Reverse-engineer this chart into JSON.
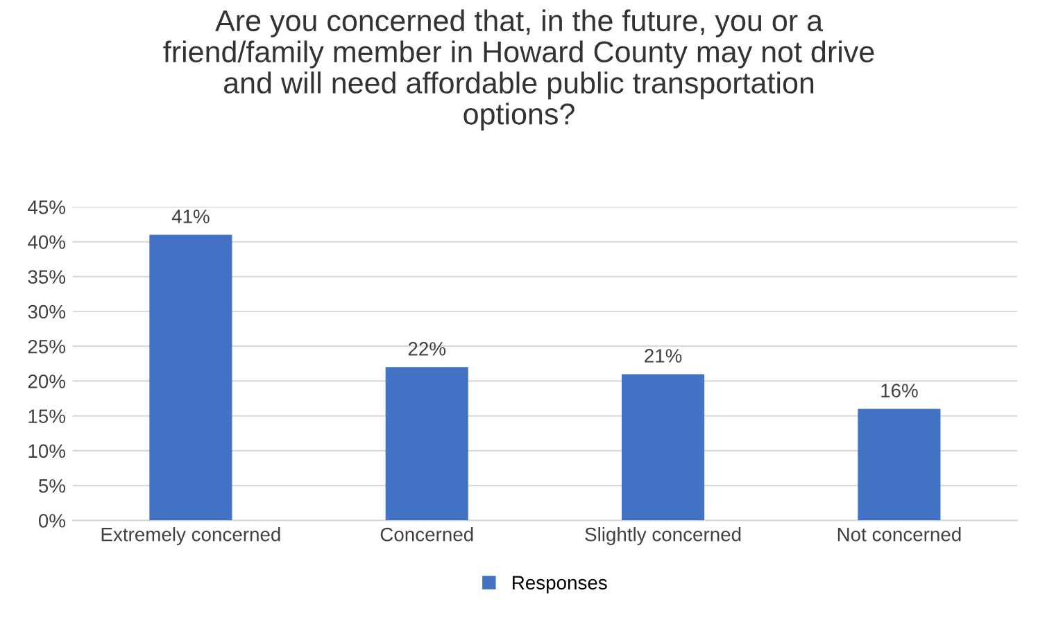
{
  "chart_data": {
    "type": "bar",
    "title": "Are you concerned that, in the future, you or a\nfriend/family member in Howard County may not drive\nand will need affordable public transportation\noptions?",
    "categories": [
      "Extremely concerned",
      "Concerned",
      "Slightly concerned",
      "Not concerned"
    ],
    "series": [
      {
        "name": "Responses",
        "color": "#4472c4",
        "values": [
          41,
          22,
          21,
          16
        ],
        "value_labels": [
          "41%",
          "22%",
          "21%",
          "16%"
        ]
      }
    ],
    "ylim": [
      0,
      45
    ],
    "yticks": [
      {
        "value": 0,
        "label": "0%"
      },
      {
        "value": 5,
        "label": "5%"
      },
      {
        "value": 10,
        "label": "10%"
      },
      {
        "value": 15,
        "label": "15%"
      },
      {
        "value": 20,
        "label": "20%"
      },
      {
        "value": 25,
        "label": "25%"
      },
      {
        "value": 30,
        "label": "30%"
      },
      {
        "value": 35,
        "label": "35%"
      },
      {
        "value": 40,
        "label": "40%"
      },
      {
        "value": 45,
        "label": "45%"
      }
    ],
    "grid": "y",
    "legend": "bottom"
  }
}
